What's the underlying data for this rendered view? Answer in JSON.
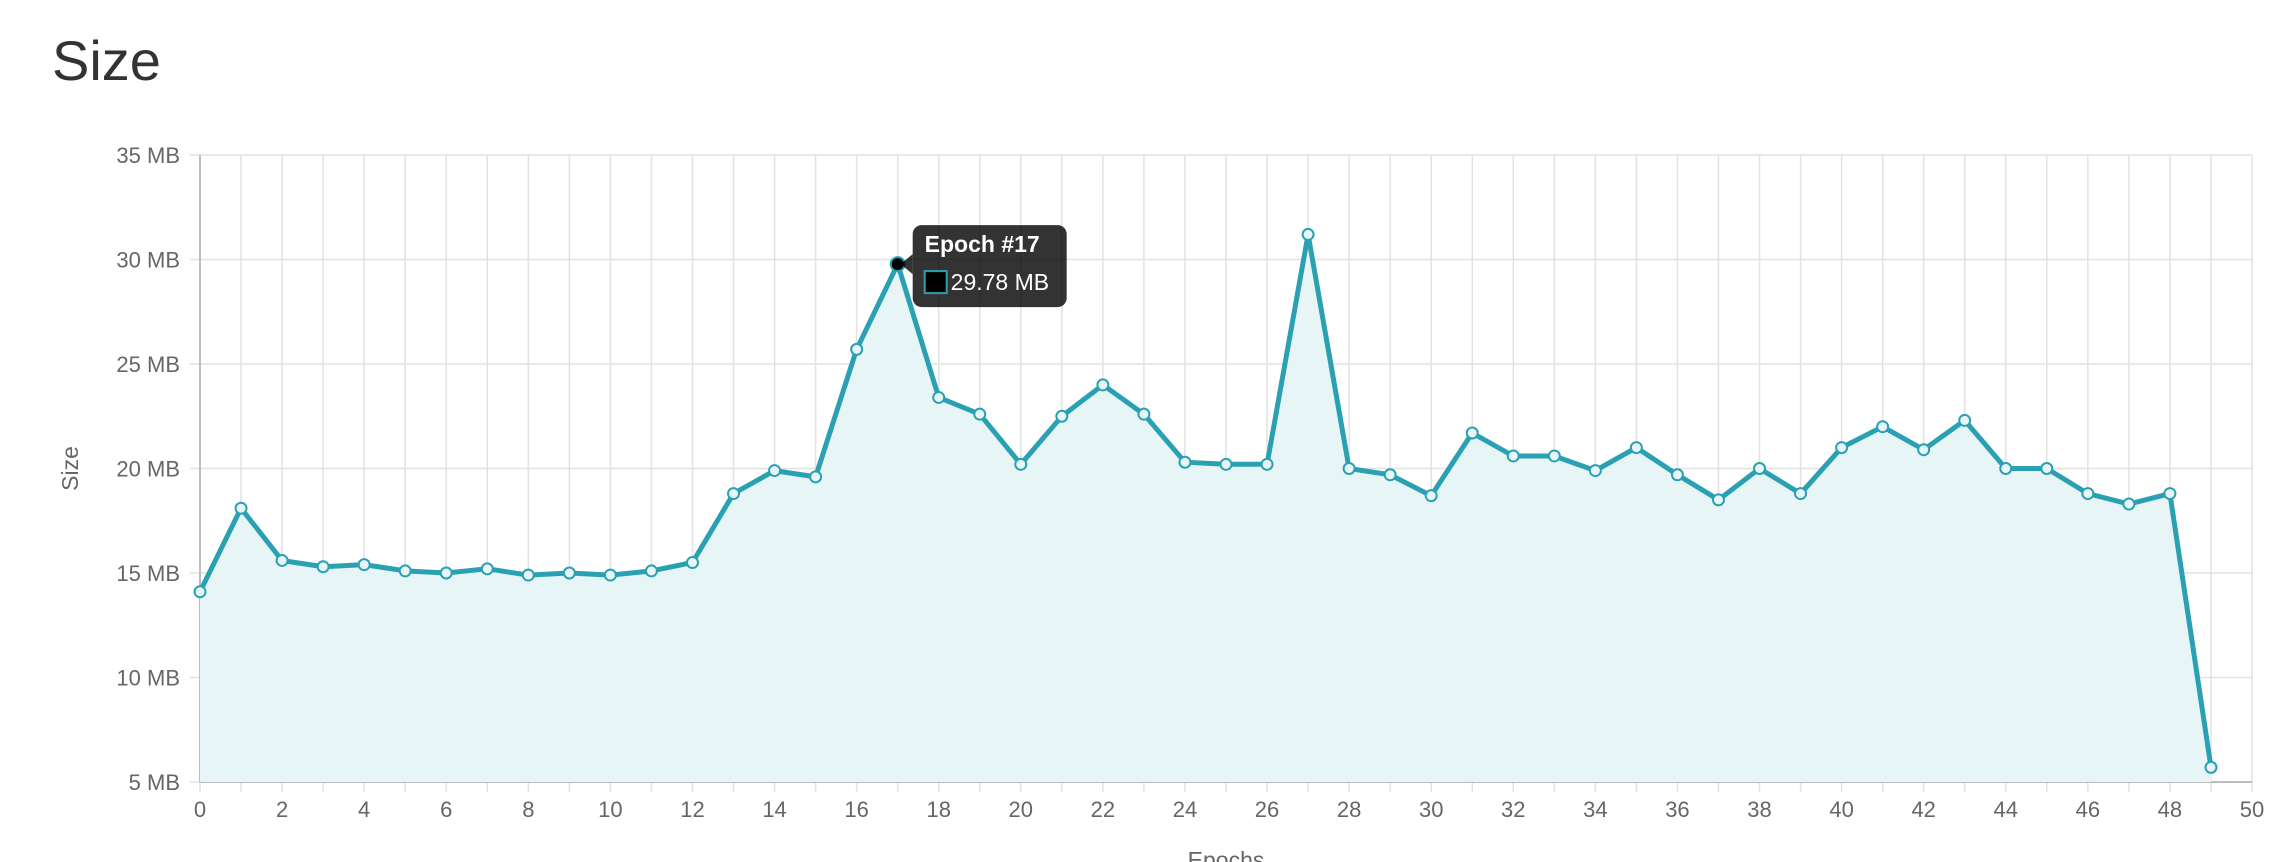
{
  "page": {
    "title": "Size"
  },
  "chart_data": {
    "type": "area",
    "xlabel": "Epochs",
    "ylabel": "Size",
    "xlim": [
      0,
      50
    ],
    "ylim": [
      5,
      35
    ],
    "x_ticks": [
      0,
      2,
      4,
      6,
      8,
      10,
      12,
      14,
      16,
      18,
      20,
      22,
      24,
      26,
      28,
      30,
      32,
      34,
      36,
      38,
      40,
      42,
      44,
      46,
      48,
      50
    ],
    "y_ticks": [
      "5 MB",
      "10 MB",
      "15 MB",
      "20 MB",
      "25 MB",
      "30 MB",
      "35 MB"
    ],
    "y_tick_values": [
      5,
      10,
      15,
      20,
      25,
      30,
      35
    ],
    "grid": true,
    "line_color": "#2aa1b3",
    "fill_color": "#e8f5f6",
    "series": [
      {
        "x": [
          0,
          1,
          2,
          3,
          4,
          5,
          6,
          7,
          8,
          9,
          10,
          11,
          12,
          13,
          14,
          15,
          16,
          17,
          18,
          19,
          20,
          21,
          22,
          23,
          24,
          25,
          26,
          27,
          28,
          29,
          30,
          31,
          32,
          33,
          34,
          35,
          36,
          37,
          38,
          39,
          40,
          41,
          42,
          43,
          44,
          45,
          46,
          47,
          48,
          49
        ],
        "values": [
          14.1,
          18.1,
          15.6,
          15.3,
          15.4,
          15.1,
          15.0,
          15.2,
          14.9,
          15.0,
          14.9,
          15.1,
          15.5,
          18.8,
          19.9,
          19.6,
          25.7,
          29.78,
          23.4,
          22.6,
          20.2,
          22.5,
          24.0,
          22.6,
          20.3,
          20.2,
          20.2,
          31.2,
          20.0,
          19.7,
          18.7,
          21.7,
          20.6,
          20.6,
          19.9,
          21.0,
          19.7,
          18.5,
          20.0,
          18.8,
          21.0,
          22.0,
          20.9,
          22.3,
          20.0,
          20.0,
          18.8,
          18.3,
          18.8,
          5.7
        ]
      }
    ],
    "tooltip": {
      "title": "Epoch #17",
      "label": "29.78 MB",
      "index": 17
    }
  }
}
